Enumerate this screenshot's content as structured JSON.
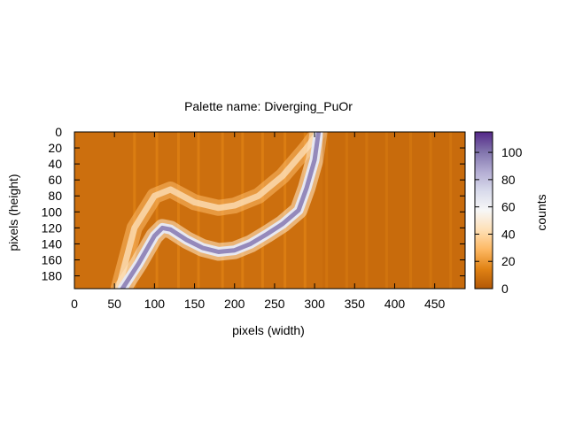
{
  "chart_data": {
    "type": "heatmap",
    "title": "Palette name: Diverging_PuOr",
    "xlabel": "pixels (width)",
    "ylabel": "pixels (height)",
    "colorbar_label": "counts",
    "x_ticks": [
      "0",
      "50",
      "100",
      "150",
      "200",
      "250",
      "300",
      "350",
      "400",
      "450"
    ],
    "y_ticks": [
      "0",
      "20",
      "40",
      "60",
      "80",
      "100",
      "120",
      "140",
      "160",
      "180"
    ],
    "cb_ticks": [
      "0",
      "20",
      "40",
      "60",
      "80",
      "100"
    ],
    "xlim": [
      0,
      488
    ],
    "ylim": [
      196,
      0
    ],
    "clim": [
      0,
      115
    ],
    "y_reversed": true,
    "palette": [
      "#b35806",
      "#e08214",
      "#fdb863",
      "#fee0b6",
      "#f7f7f7",
      "#d8daeb",
      "#b2abd2",
      "#8073ac",
      "#542788"
    ],
    "background_counts": 8,
    "stripes_x": [
      75,
      103,
      130,
      155,
      185,
      210,
      235,
      263,
      288,
      315,
      340,
      365,
      390,
      420,
      445,
      470
    ],
    "bright_band": {
      "x": [
        60,
        80,
        100,
        110,
        120,
        140,
        160,
        180,
        200,
        220,
        240,
        260,
        280,
        290,
        300,
        305
      ],
      "y": [
        196,
        165,
        130,
        120,
        122,
        135,
        145,
        150,
        148,
        140,
        128,
        115,
        98,
        70,
        35,
        0
      ],
      "peak_counts": 95
    },
    "halo_band": {
      "x": [
        55,
        75,
        100,
        120,
        150,
        180,
        200,
        230,
        260,
        290,
        305
      ],
      "y": [
        196,
        120,
        80,
        72,
        88,
        95,
        92,
        80,
        55,
        20,
        0
      ],
      "peak_counts": 45
    },
    "cutoff_x": 310
  }
}
